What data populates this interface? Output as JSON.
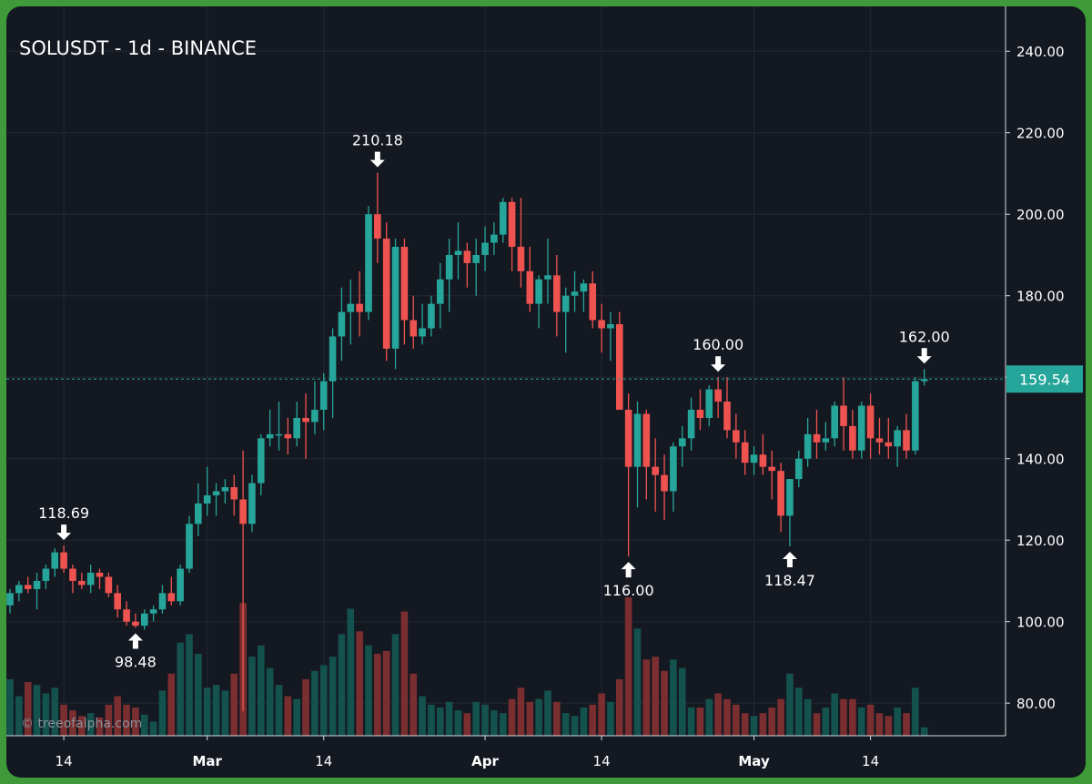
{
  "title": "SOLUSDT - 1d - BINANCE",
  "watermark": "© treeofalpha.com",
  "colors": {
    "background": "#141821",
    "frame": "#3f9a3a",
    "up": "#26a69a",
    "down": "#ef5350",
    "volume_up": "#14524d",
    "volume_down": "#7a2e30",
    "grid": "#232833",
    "text": "#ffffff",
    "last_price_bg": "#26a69a"
  },
  "chart_data": {
    "type": "candlestick",
    "title": "SOLUSDT - 1d - BINANCE",
    "y_ticks": [
      "240.00",
      "220.00",
      "200.00",
      "180.00",
      "160.00",
      "140.00",
      "120.00",
      "100.00",
      "80.00"
    ],
    "y_tick_values": [
      240,
      220,
      200,
      180,
      160,
      140,
      120,
      100,
      80
    ],
    "ylim": [
      72,
      251
    ],
    "x_ticks": [
      {
        "label": "14",
        "date": "2024-02-14"
      },
      {
        "label": "Mar",
        "date": "2024-03-01"
      },
      {
        "label": "14",
        "date": "2024-03-14"
      },
      {
        "label": "Apr",
        "date": "2024-04-01"
      },
      {
        "label": "14",
        "date": "2024-04-14"
      },
      {
        "label": "May",
        "date": "2024-05-01"
      },
      {
        "label": "14",
        "date": "2024-05-14"
      }
    ],
    "last_price": 159.54,
    "last_price_label": "159.54",
    "start_date": "2024-02-08",
    "candles": [
      [
        104,
        108,
        102,
        107,
        0.4
      ],
      [
        107,
        110,
        105,
        109,
        0.28
      ],
      [
        109,
        111,
        107,
        108,
        0.38
      ],
      [
        108,
        112,
        103,
        110,
        0.36
      ],
      [
        110,
        114,
        108,
        113,
        0.3
      ],
      [
        113,
        118,
        111,
        117,
        0.34
      ],
      [
        117,
        118.69,
        112,
        113,
        0.22
      ],
      [
        113,
        114,
        107,
        110,
        0.18
      ],
      [
        110,
        112,
        108,
        109,
        0.14
      ],
      [
        109,
        114,
        107,
        112,
        0.16
      ],
      [
        112,
        113,
        108,
        111,
        0.13
      ],
      [
        111,
        112,
        106,
        107,
        0.22
      ],
      [
        107,
        109,
        101,
        103,
        0.28
      ],
      [
        103,
        105,
        99,
        100,
        0.22
      ],
      [
        100,
        102,
        98.48,
        99,
        0.2
      ],
      [
        99,
        103,
        98,
        102,
        0.15
      ],
      [
        102,
        104,
        100,
        103,
        0.1
      ],
      [
        103,
        109,
        102,
        107,
        0.32
      ],
      [
        107,
        111,
        104,
        105,
        0.44
      ],
      [
        105,
        114,
        104,
        113,
        0.66
      ],
      [
        113,
        126,
        112,
        124,
        0.72
      ],
      [
        124,
        134,
        121,
        129,
        0.58
      ],
      [
        129,
        138,
        126,
        131,
        0.34
      ],
      [
        131,
        134,
        126,
        132,
        0.36
      ],
      [
        132,
        135,
        129,
        133,
        0.32
      ],
      [
        133,
        136,
        126,
        130,
        0.44
      ],
      [
        130,
        142,
        78,
        124,
        0.94
      ],
      [
        124,
        136,
        122,
        134,
        0.56
      ],
      [
        134,
        146,
        131,
        145,
        0.64
      ],
      [
        145,
        152,
        143,
        146,
        0.48
      ],
      [
        146,
        154,
        142,
        146,
        0.36
      ],
      [
        146,
        150,
        141,
        145,
        0.28
      ],
      [
        145,
        154,
        143,
        150,
        0.26
      ],
      [
        150,
        156,
        140,
        149,
        0.4
      ],
      [
        149,
        159,
        146,
        152,
        0.46
      ],
      [
        152,
        161,
        147,
        159,
        0.5
      ],
      [
        159,
        172,
        150,
        170,
        0.56
      ],
      [
        170,
        182,
        164,
        176,
        0.72
      ],
      [
        176,
        184,
        168,
        178,
        0.9
      ],
      [
        178,
        186,
        170,
        176,
        0.74
      ],
      [
        176,
        202,
        174,
        200,
        0.64
      ],
      [
        200,
        210.18,
        188,
        194,
        0.58
      ],
      [
        194,
        198,
        164,
        167,
        0.6
      ],
      [
        167,
        194,
        162,
        192,
        0.72
      ],
      [
        192,
        194,
        168,
        174,
        0.88
      ],
      [
        174,
        180,
        167,
        170,
        0.44
      ],
      [
        170,
        178,
        168,
        172,
        0.28
      ],
      [
        172,
        180,
        170,
        178,
        0.22
      ],
      [
        178,
        188,
        172,
        184,
        0.2
      ],
      [
        184,
        194,
        176,
        190,
        0.24
      ],
      [
        190,
        198,
        184,
        191,
        0.18
      ],
      [
        191,
        193,
        182,
        188,
        0.16
      ],
      [
        188,
        194,
        180,
        190,
        0.24
      ],
      [
        190,
        197,
        186,
        193,
        0.22
      ],
      [
        193,
        198,
        190,
        195,
        0.18
      ],
      [
        195,
        204,
        193,
        203,
        0.16
      ],
      [
        203,
        204,
        186,
        192,
        0.26
      ],
      [
        192,
        204,
        182,
        186,
        0.34
      ],
      [
        186,
        192,
        176,
        178,
        0.24
      ],
      [
        178,
        185,
        172,
        184,
        0.26
      ],
      [
        184,
        194,
        178,
        185,
        0.32
      ],
      [
        185,
        190,
        170,
        176,
        0.24
      ],
      [
        176,
        182,
        166,
        180,
        0.16
      ],
      [
        180,
        186,
        176,
        181,
        0.14
      ],
      [
        181,
        184,
        176,
        183,
        0.2
      ],
      [
        183,
        186,
        172,
        174,
        0.22
      ],
      [
        174,
        178,
        166,
        172,
        0.3
      ],
      [
        172,
        176,
        164,
        173,
        0.24
      ],
      [
        173,
        176,
        153,
        152,
        0.4
      ],
      [
        152,
        156,
        116,
        138,
        0.98
      ],
      [
        138,
        154,
        128,
        151,
        0.76
      ],
      [
        151,
        152,
        130,
        138,
        0.54
      ],
      [
        138,
        145,
        127,
        136,
        0.56
      ],
      [
        136,
        141,
        125,
        132,
        0.46
      ],
      [
        132,
        144,
        127,
        143,
        0.54
      ],
      [
        143,
        148,
        138,
        145,
        0.48
      ],
      [
        145,
        155,
        142,
        152,
        0.2
      ],
      [
        152,
        157,
        147,
        150,
        0.2
      ],
      [
        150,
        158,
        148,
        157,
        0.26
      ],
      [
        157,
        160,
        150,
        154,
        0.3
      ],
      [
        154,
        160,
        145,
        147,
        0.26
      ],
      [
        147,
        151,
        140,
        144,
        0.22
      ],
      [
        144,
        147,
        136,
        139,
        0.16
      ],
      [
        139,
        143,
        136,
        141,
        0.14
      ],
      [
        141,
        146,
        136,
        138,
        0.16
      ],
      [
        138,
        142,
        130,
        137,
        0.2
      ],
      [
        137,
        139,
        122,
        126,
        0.26
      ],
      [
        126,
        135,
        118.47,
        135,
        0.44
      ],
      [
        135,
        142,
        133,
        140,
        0.34
      ],
      [
        140,
        150,
        138,
        146,
        0.26
      ],
      [
        146,
        152,
        140,
        144,
        0.16
      ],
      [
        144,
        149,
        142,
        145,
        0.2
      ],
      [
        145,
        154,
        143,
        153,
        0.3
      ],
      [
        153,
        160,
        142,
        148,
        0.26
      ],
      [
        148,
        152,
        140,
        142,
        0.26
      ],
      [
        142,
        154,
        140,
        153,
        0.2
      ],
      [
        153,
        156,
        140,
        145,
        0.22
      ],
      [
        145,
        150,
        141,
        144,
        0.16
      ],
      [
        144,
        150,
        140,
        143,
        0.14
      ],
      [
        143,
        148,
        138,
        147,
        0.2
      ],
      [
        147,
        151,
        140,
        142,
        0.16
      ],
      [
        142,
        160,
        141,
        159,
        0.34
      ],
      [
        159,
        162,
        158,
        159.54,
        0.06
      ]
    ],
    "annotations": [
      {
        "label": "118.69",
        "value": 118.69,
        "kind": "high",
        "index": 6
      },
      {
        "label": "98.48",
        "value": 98.48,
        "kind": "low",
        "index": 14
      },
      {
        "label": "210.18",
        "value": 210.18,
        "kind": "high",
        "index": 41
      },
      {
        "label": "116.00",
        "value": 116.0,
        "kind": "low",
        "index": 69
      },
      {
        "label": "160.00",
        "value": 160.0,
        "kind": "high",
        "index": 79
      },
      {
        "label": "118.47",
        "value": 118.47,
        "kind": "low",
        "index": 87
      },
      {
        "label": "162.00",
        "value": 162.0,
        "kind": "high",
        "index": 102
      }
    ]
  }
}
